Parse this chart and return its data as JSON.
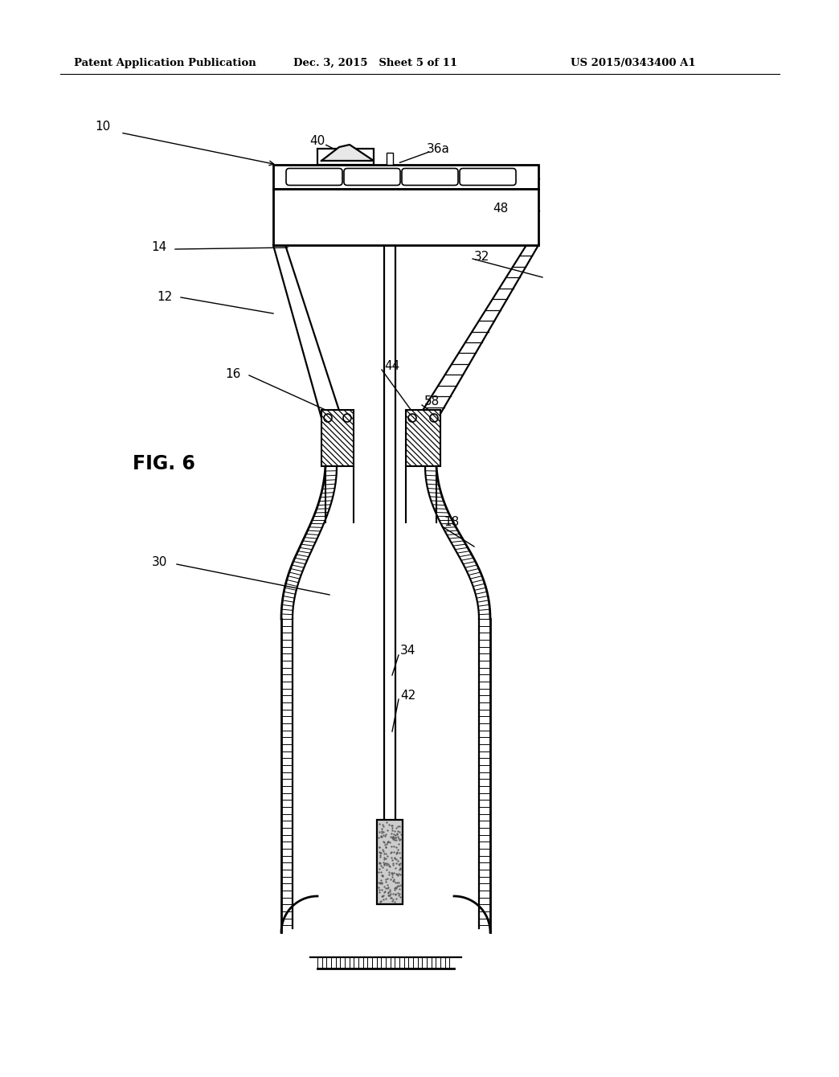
{
  "title_left": "Patent Application Publication",
  "title_mid": "Dec. 3, 2015   Sheet 5 of 11",
  "title_right": "US 2015/0343400 A1",
  "fig_label": "FIG. 6",
  "background_color": "#ffffff"
}
